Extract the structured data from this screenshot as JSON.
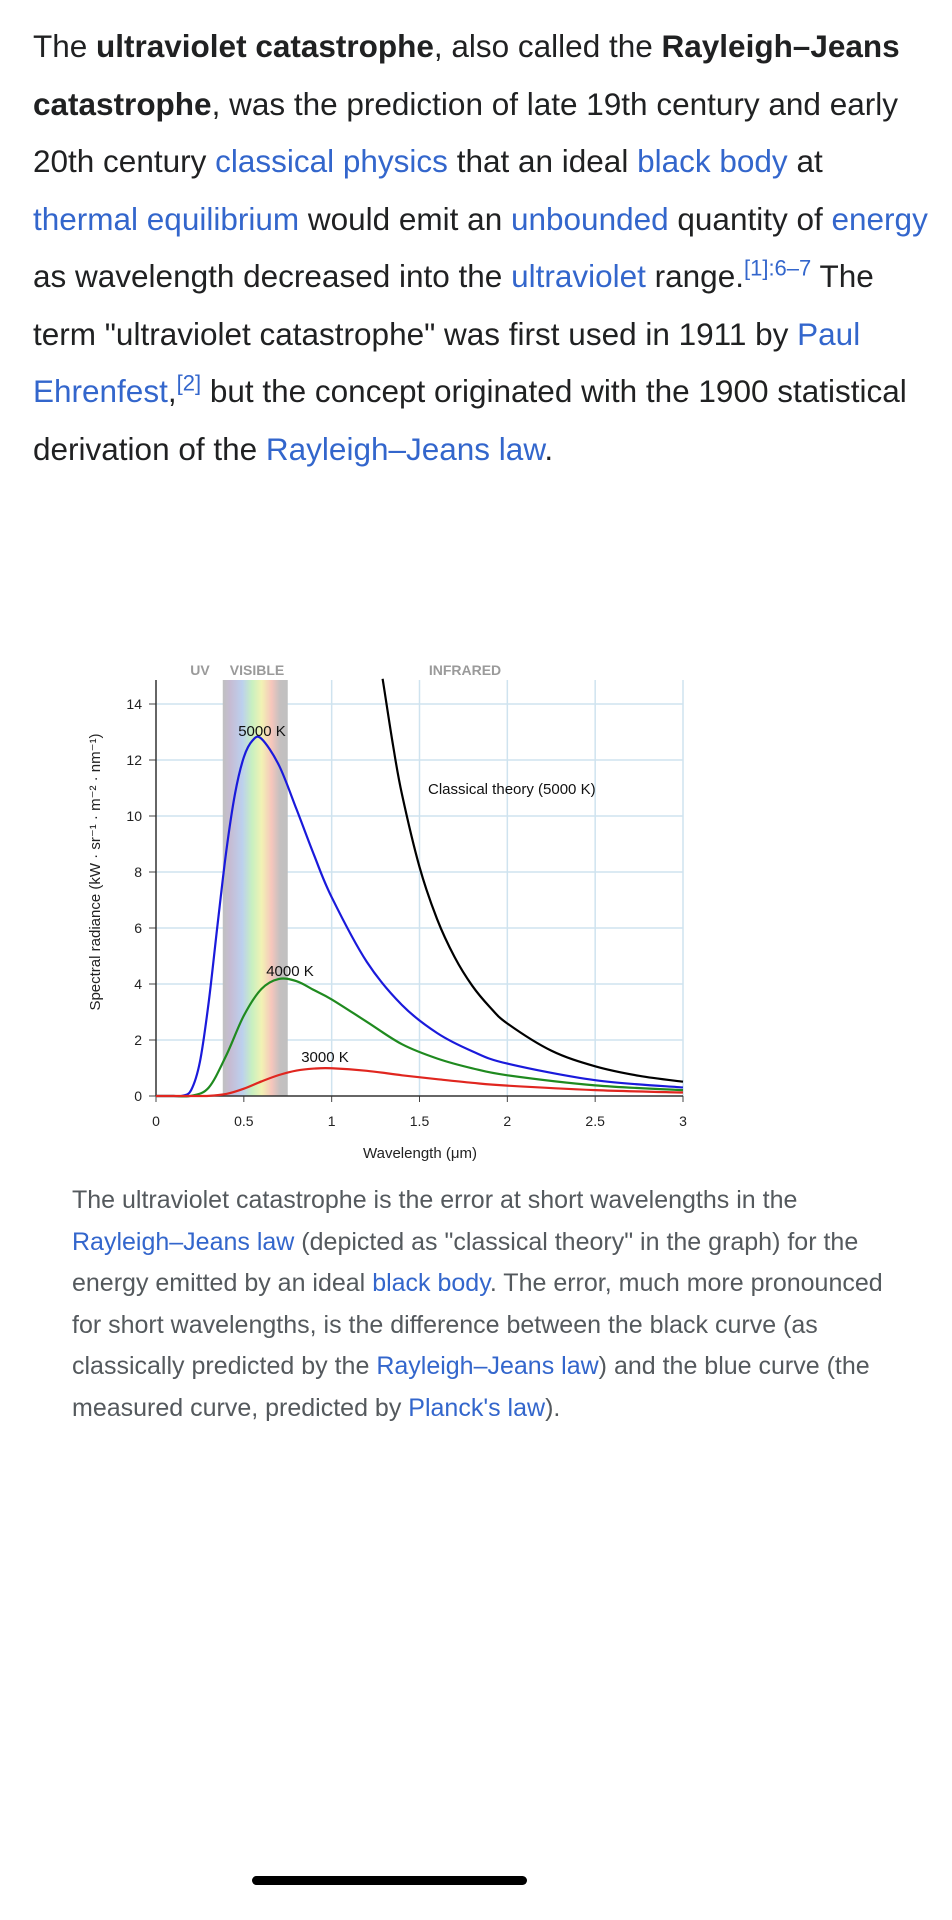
{
  "article": {
    "segments": [
      {
        "t": "The "
      },
      {
        "t": "ultraviolet catastrophe",
        "b": true
      },
      {
        "t": ", also called the "
      },
      {
        "t": "Rayleigh–Jeans catastrophe",
        "b": true
      },
      {
        "t": ", was the prediction of late 19th century and early 20th century "
      },
      {
        "t": "classical physics",
        "link": true
      },
      {
        "t": " that an ideal "
      },
      {
        "t": "black body",
        "link": true
      },
      {
        "t": " at "
      },
      {
        "t": "thermal equilibrium",
        "link": true
      },
      {
        "t": " would emit an "
      },
      {
        "t": "unbounded",
        "link": true
      },
      {
        "t": " quantity of "
      },
      {
        "t": "energy",
        "link": true
      },
      {
        "t": " as wavelength decreased into the "
      },
      {
        "t": "ultraviolet",
        "link": true
      },
      {
        "t": " range."
      },
      {
        "t": "[1]:6–7",
        "sup": true
      },
      {
        "t": " The term \"ultraviolet catastrophe\" was first used in 1911 by "
      },
      {
        "t": "Paul Ehrenfest",
        "link": true
      },
      {
        "t": ","
      },
      {
        "t": "[2]",
        "sup": true
      },
      {
        "t": " but the concept originated with the 1900 statistical derivation of the "
      },
      {
        "t": "Rayleigh–Jeans law",
        "link": true
      },
      {
        "t": "."
      }
    ]
  },
  "caption": {
    "segments": [
      {
        "t": "The ultraviolet catastrophe is the error at short wavelengths in the "
      },
      {
        "t": "Rayleigh–Jeans law",
        "link": true
      },
      {
        "t": " (depicted as \"classical theory\" in the graph) for the energy emitted by an ideal "
      },
      {
        "t": "black body",
        "link": true
      },
      {
        "t": ". The error, much more pronounced for short wavelengths, is the difference between the black curve (as classically predicted by the "
      },
      {
        "t": "Rayleigh–Jeans law",
        "link": true
      },
      {
        "t": ") and the blue curve (the measured curve, predicted by "
      },
      {
        "t": "Planck's law",
        "link": true
      },
      {
        "t": ")."
      }
    ]
  },
  "chart_data": {
    "type": "line",
    "title": "",
    "xlabel": "Wavelength (μm)",
    "ylabel": "Spectral radiance (kW · sr⁻¹ · m⁻² · nm⁻¹)",
    "xlim": [
      0,
      3
    ],
    "ylim": [
      0,
      14.9
    ],
    "xticks": [
      "0",
      "0.5",
      "1",
      "1.5",
      "2",
      "2.5",
      "3"
    ],
    "xtick_values": [
      0,
      0.5,
      1,
      1.5,
      2,
      2.5,
      3
    ],
    "yticks": [
      "0",
      "2",
      "4",
      "6",
      "8",
      "10",
      "12",
      "14"
    ],
    "ytick_values": [
      0,
      2,
      4,
      6,
      8,
      10,
      12,
      14
    ],
    "grid": true,
    "regions": [
      {
        "label": "UV",
        "x": [
          0,
          0.38
        ]
      },
      {
        "label": "VISIBLE",
        "x": [
          0.38,
          0.75
        ]
      },
      {
        "label": "INFRARED",
        "x": [
          0.75,
          3
        ]
      }
    ],
    "series": [
      {
        "name": "5000 K",
        "label": "5000 K",
        "color": "#1a1adb",
        "x": [
          0,
          0.1,
          0.15,
          0.2,
          0.25,
          0.3,
          0.35,
          0.4,
          0.45,
          0.5,
          0.55,
          0.6,
          0.7,
          0.8,
          0.9,
          1.0,
          1.2,
          1.4,
          1.6,
          1.8,
          2.0,
          2.5,
          3.0
        ],
        "y": [
          0,
          0,
          0.007,
          0.21,
          1.22,
          3.35,
          6.1,
          8.74,
          10.8,
          12.1,
          12.7,
          12.76,
          11.81,
          10.24,
          8.6,
          7.1,
          4.79,
          3.25,
          2.25,
          1.6,
          1.157,
          0.564,
          0.305
        ]
      },
      {
        "name": "4000 K",
        "label": "4000 K",
        "color": "#1f8a1f",
        "x": [
          0,
          0.1,
          0.2,
          0.3,
          0.4,
          0.5,
          0.6,
          0.7,
          0.8,
          0.9,
          1.0,
          1.2,
          1.4,
          1.6,
          1.8,
          2.0,
          2.5,
          3.0
        ],
        "y": [
          0,
          0,
          0.006,
          0.3,
          1.45,
          2.87,
          3.82,
          4.18,
          4.1,
          3.78,
          3.45,
          2.65,
          1.85,
          1.34,
          0.99,
          0.74,
          0.38,
          0.21
        ]
      },
      {
        "name": "3000 K",
        "label": "3000 K",
        "color": "#e0261f",
        "x": [
          0,
          0.1,
          0.2,
          0.3,
          0.4,
          0.5,
          0.6,
          0.7,
          0.8,
          0.9,
          1.0,
          1.2,
          1.4,
          1.6,
          1.8,
          2.0,
          2.5,
          3.0
        ],
        "y": [
          0,
          0,
          0,
          0.0056,
          0.072,
          0.26,
          0.52,
          0.75,
          0.91,
          0.98,
          0.99,
          0.9,
          0.74,
          0.6,
          0.47,
          0.37,
          0.21,
          0.124
        ]
      },
      {
        "name": "Classical theory (5000 K)",
        "label": "Classical theory (5000 K)",
        "color": "#000000",
        "x": [
          1.29,
          1.3,
          1.35,
          1.4,
          1.5,
          1.6,
          1.7,
          1.8,
          1.9,
          2.0,
          2.25,
          2.5,
          2.75,
          3.0
        ],
        "y": [
          14.9,
          14.5,
          12.5,
          10.78,
          8.18,
          6.32,
          4.96,
          3.94,
          3.18,
          2.59,
          1.62,
          1.06,
          0.72,
          0.51
        ]
      }
    ]
  }
}
